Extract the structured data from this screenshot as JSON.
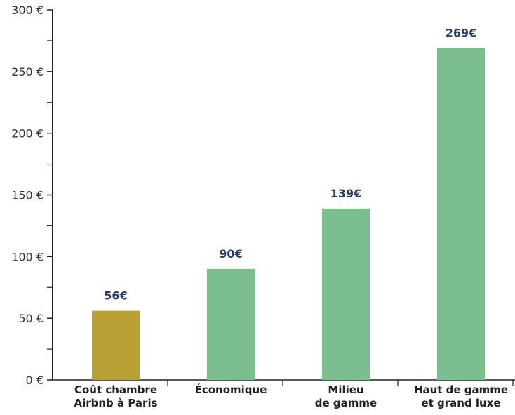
{
  "chart_data": {
    "type": "bar",
    "categories": [
      [
        "Coût chambre",
        "Airbnb à Paris"
      ],
      [
        "Économique"
      ],
      [
        "Milieu",
        "de gamme"
      ],
      [
        "Haut de gamme",
        "et grand luxe"
      ]
    ],
    "values": [
      56,
      90,
      139,
      269
    ],
    "value_labels": [
      "56€",
      "90€",
      "139€",
      "269€"
    ],
    "bar_colors": [
      "#b8a035",
      "#7bbf8e",
      "#7bbf8e",
      "#7bbf8e"
    ],
    "value_label_color": "#2a3d66",
    "axis_color": "#222222",
    "ylim": [
      0,
      300
    ],
    "ytick_values": [
      0,
      50,
      100,
      150,
      200,
      250,
      300
    ],
    "ytick_labels": [
      "0 €",
      "50 €",
      "100 €",
      "150 €",
      "200 €",
      "250 €",
      "300 €"
    ],
    "minor_ticks": true,
    "grid": false,
    "title": "",
    "xlabel": "",
    "ylabel": ""
  }
}
